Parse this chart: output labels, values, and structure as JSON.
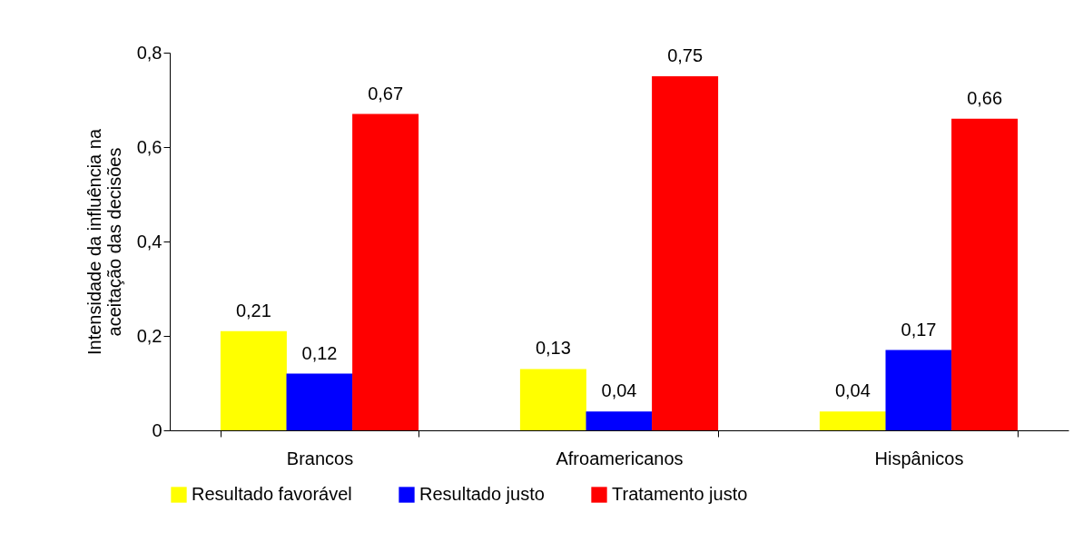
{
  "chart_data": {
    "type": "bar",
    "ylabel": "Intensidade da influência na\naceitação das decisões",
    "categories": [
      "Brancos",
      "Afroamericanos",
      "Hispânicos"
    ],
    "series": [
      {
        "name": "Resultado favorável",
        "color": "#ffff00",
        "values": [
          0.21,
          0.13,
          0.04
        ],
        "value_labels": [
          "0,21",
          "0,13",
          "0,04"
        ]
      },
      {
        "name": "Resultado justo",
        "color": "#0000ff",
        "values": [
          0.12,
          0.04,
          0.17
        ],
        "value_labels": [
          "0,12",
          "0,04",
          "0,17"
        ]
      },
      {
        "name": "Tratamento justo",
        "color": "#ff0000",
        "values": [
          0.67,
          0.75,
          0.66
        ],
        "value_labels": [
          "0,67",
          "0,75",
          "0,66"
        ]
      }
    ],
    "ylim": [
      0,
      0.8
    ],
    "yticks": [
      0,
      {
        "value": 0.2,
        "label": "0,2"
      },
      {
        "value": 0.4,
        "label": "0,4"
      },
      {
        "value": 0.6,
        "label": "0,6"
      },
      {
        "value": 0.8,
        "label": "0,8"
      }
    ],
    "grid": false,
    "legend": "bottom"
  }
}
